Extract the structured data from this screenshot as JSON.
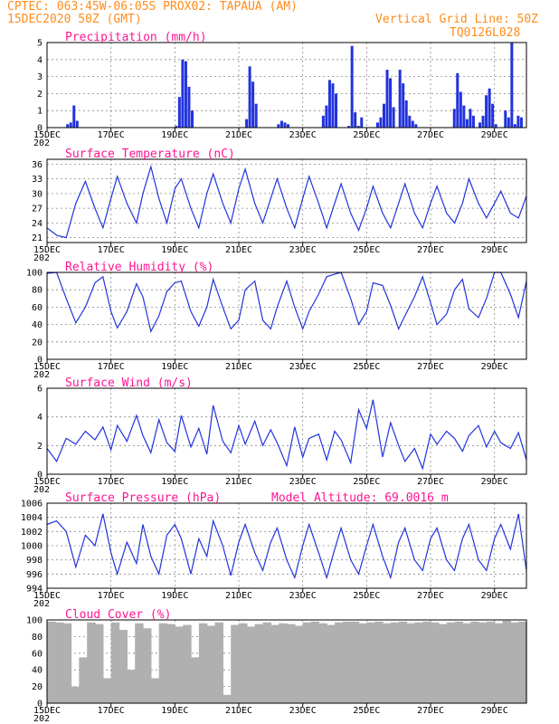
{
  "header": {
    "line1": "CPTEC:  063:45W-06:05S  PROX02: TAPAUA (AM)",
    "line2": "15DEC2020 50Z (GMT)",
    "vgrid": "Vertical Grid Line: 50Z",
    "code": "TQ0126L028"
  },
  "colors": {
    "header": "#ff8c1a",
    "title": "#ff1493",
    "line": "#2233dd",
    "cloud": "#b0b0b0",
    "grid": "#888888"
  },
  "x_labels": [
    "15DEC",
    "17DEC",
    "19DEC",
    "21DEC",
    "23DEC",
    "25DEC",
    "27DEC",
    "29DEC"
  ],
  "x_label_prefix": "202",
  "chart_data": [
    {
      "type": "bar",
      "title": "Precipitation (mm/h)",
      "ylim": [
        0,
        5
      ],
      "yticks": [
        "0",
        "1",
        "2",
        "3",
        "4",
        "5"
      ],
      "x": [
        0.6,
        0.7,
        0.8,
        0.9,
        4.0,
        4.1,
        4.2,
        4.3,
        4.4,
        4.5,
        6.2,
        6.3,
        6.4,
        6.5,
        7.2,
        7.3,
        7.4,
        7.5,
        8.6,
        8.7,
        8.8,
        8.9,
        9.0,
        9.4,
        9.5,
        9.6,
        9.7,
        9.8,
        10.3,
        10.4,
        10.5,
        10.6,
        10.7,
        10.8,
        11.0,
        11.1,
        11.2,
        11.3,
        11.4,
        11.5,
        12.7,
        12.8,
        12.9,
        13.0,
        13.1,
        13.2,
        13.3,
        13.5,
        13.6,
        13.7,
        13.8,
        13.9,
        14.0,
        14.3,
        14.4,
        14.5,
        14.6,
        14.7,
        14.8
      ],
      "values": [
        0.2,
        0.3,
        1.3,
        0.4,
        0.1,
        1.8,
        4.0,
        3.9,
        2.4,
        1.0,
        0.5,
        3.6,
        2.7,
        1.4,
        0.2,
        0.4,
        0.3,
        0.2,
        0.7,
        1.3,
        2.8,
        2.6,
        2.0,
        0.1,
        4.8,
        0.9,
        0.1,
        0.6,
        0.3,
        0.6,
        1.4,
        3.4,
        2.9,
        1.2,
        3.4,
        2.6,
        1.6,
        0.7,
        0.4,
        0.2,
        1.1,
        3.2,
        2.1,
        1.3,
        0.5,
        1.1,
        0.7,
        0.3,
        0.7,
        1.9,
        2.3,
        1.4,
        0.2,
        1.0,
        0.6,
        5.0,
        0.2,
        0.7,
        0.6
      ]
    },
    {
      "type": "line",
      "title": "Surface Temperature (nC)",
      "ylim": [
        20,
        37
      ],
      "yticks": [
        "21",
        "24",
        "27",
        "30",
        "33",
        "36"
      ],
      "x": [
        0.0,
        0.3,
        0.6,
        0.9,
        1.2,
        1.5,
        1.75,
        2.0,
        2.2,
        2.5,
        2.8,
        3.0,
        3.25,
        3.5,
        3.75,
        4.0,
        4.2,
        4.5,
        4.75,
        5.0,
        5.2,
        5.5,
        5.75,
        6.0,
        6.2,
        6.5,
        6.75,
        7.0,
        7.2,
        7.5,
        7.75,
        8.0,
        8.2,
        8.5,
        8.75,
        9.0,
        9.2,
        9.5,
        9.75,
        10.0,
        10.2,
        10.5,
        10.75,
        11.0,
        11.2,
        11.5,
        11.75,
        12.0,
        12.2,
        12.5,
        12.75,
        13.0,
        13.2,
        13.5,
        13.75,
        14.0,
        14.2,
        14.5,
        14.75,
        15.0
      ],
      "values": [
        23,
        21.5,
        21,
        28,
        32.5,
        27,
        23,
        29,
        33.5,
        28,
        24,
        30,
        35.5,
        29,
        24,
        31,
        33,
        27,
        23,
        30,
        34,
        28,
        24,
        31,
        35,
        28,
        24,
        29,
        33,
        27,
        23,
        29,
        33.5,
        28,
        23,
        28,
        32,
        26,
        22.5,
        27,
        31.5,
        26,
        23,
        28,
        32,
        26,
        23,
        28,
        31.5,
        26,
        24,
        28,
        33,
        28,
        25,
        28,
        30.5,
        26,
        25,
        29.5
      ]
    },
    {
      "type": "line",
      "title": "Relative Humidity (%)",
      "ylim": [
        0,
        100
      ],
      "yticks": [
        "0",
        "20",
        "40",
        "60",
        "80",
        "100"
      ],
      "x": [
        0.0,
        0.3,
        0.6,
        0.9,
        1.2,
        1.5,
        1.75,
        2.0,
        2.2,
        2.5,
        2.8,
        3.0,
        3.25,
        3.5,
        3.75,
        4.0,
        4.2,
        4.5,
        4.75,
        5.0,
        5.2,
        5.5,
        5.75,
        6.0,
        6.2,
        6.5,
        6.75,
        7.0,
        7.2,
        7.5,
        7.75,
        8.0,
        8.2,
        8.5,
        8.75,
        9.0,
        9.2,
        9.5,
        9.75,
        10.0,
        10.2,
        10.5,
        10.75,
        11.0,
        11.2,
        11.5,
        11.75,
        12.0,
        12.2,
        12.5,
        12.75,
        13.0,
        13.2,
        13.5,
        13.75,
        14.0,
        14.2,
        14.5,
        14.75,
        15.0
      ],
      "values": [
        99,
        100,
        70,
        42,
        60,
        88,
        95,
        55,
        36,
        55,
        87,
        72,
        32,
        50,
        78,
        88,
        90,
        55,
        38,
        60,
        92,
        60,
        35,
        45,
        80,
        90,
        45,
        35,
        60,
        90,
        60,
        35,
        55,
        75,
        95,
        98,
        100,
        70,
        40,
        55,
        88,
        85,
        62,
        35,
        50,
        72,
        95,
        65,
        40,
        52,
        80,
        92,
        58,
        48,
        70,
        100,
        100,
        75,
        48,
        90
      ]
    },
    {
      "type": "line",
      "title": "Surface Wind (m/s)",
      "ylim": [
        0,
        6
      ],
      "yticks": [
        "0",
        "2",
        "4",
        "6"
      ],
      "x": [
        0.0,
        0.3,
        0.6,
        0.9,
        1.2,
        1.5,
        1.75,
        2.0,
        2.2,
        2.5,
        2.8,
        3.0,
        3.25,
        3.5,
        3.75,
        4.0,
        4.2,
        4.5,
        4.75,
        5.0,
        5.2,
        5.5,
        5.75,
        6.0,
        6.2,
        6.5,
        6.75,
        7.0,
        7.2,
        7.5,
        7.75,
        8.0,
        8.2,
        8.5,
        8.75,
        9.0,
        9.2,
        9.5,
        9.75,
        10.0,
        10.2,
        10.5,
        10.75,
        11.0,
        11.2,
        11.5,
        11.75,
        12.0,
        12.2,
        12.5,
        12.75,
        13.0,
        13.2,
        13.5,
        13.75,
        14.0,
        14.2,
        14.5,
        14.75,
        15.0
      ],
      "values": [
        1.8,
        0.9,
        2.5,
        2.1,
        3.0,
        2.4,
        3.3,
        1.7,
        3.4,
        2.3,
        4.1,
        2.7,
        1.5,
        3.8,
        2.2,
        1.6,
        4.1,
        1.9,
        3.2,
        1.4,
        4.8,
        2.3,
        1.5,
        3.4,
        2.1,
        3.7,
        2.0,
        3.1,
        2.2,
        0.6,
        3.3,
        1.2,
        2.5,
        2.8,
        1.0,
        3.0,
        2.4,
        0.8,
        4.5,
        3.2,
        5.2,
        1.2,
        3.6,
        2.0,
        0.9,
        1.8,
        0.4,
        2.8,
        2.1,
        3.0,
        2.5,
        1.6,
        2.7,
        3.4,
        1.9,
        3.0,
        2.2,
        1.8,
        2.9,
        1.0
      ]
    },
    {
      "type": "line",
      "title": "Surface Pressure (hPa)",
      "annotation": "Model Altitude: 69.0016 m",
      "ylim": [
        994,
        1006
      ],
      "yticks": [
        "994",
        "996",
        "998",
        "1000",
        "1002",
        "1004",
        "1006"
      ],
      "x": [
        0.0,
        0.3,
        0.6,
        0.9,
        1.2,
        1.5,
        1.75,
        2.0,
        2.2,
        2.5,
        2.8,
        3.0,
        3.25,
        3.5,
        3.75,
        4.0,
        4.2,
        4.5,
        4.75,
        5.0,
        5.2,
        5.5,
        5.75,
        6.0,
        6.2,
        6.5,
        6.75,
        7.0,
        7.2,
        7.5,
        7.75,
        8.0,
        8.2,
        8.5,
        8.75,
        9.0,
        9.2,
        9.5,
        9.75,
        10.0,
        10.2,
        10.5,
        10.75,
        11.0,
        11.2,
        11.5,
        11.75,
        12.0,
        12.2,
        12.5,
        12.75,
        13.0,
        13.2,
        13.5,
        13.75,
        14.0,
        14.2,
        14.5,
        14.75,
        15.0
      ],
      "values": [
        1003,
        1003.5,
        1002,
        997,
        1001.5,
        1000,
        1004.5,
        999,
        996,
        1000.5,
        997.5,
        1003,
        998.5,
        996,
        1001.5,
        1003,
        1001,
        996,
        1001,
        998.5,
        1003.5,
        1000,
        995.8,
        1000.5,
        1003,
        999,
        996.5,
        1000.5,
        1002.5,
        998,
        995.5,
        1000,
        1003,
        999,
        995.5,
        999.5,
        1002.5,
        998,
        996,
        1000,
        1003,
        998.5,
        995.5,
        1000.5,
        1002.5,
        998,
        996.5,
        1001,
        1002.5,
        998,
        996.5,
        1001,
        1003,
        998,
        996.5,
        1001,
        1003,
        999.5,
        1004.5,
        996.5
      ]
    },
    {
      "type": "bar",
      "title": "Cloud Cover (%)",
      "ylim": [
        0,
        100
      ],
      "yticks": [
        "0",
        "20",
        "40",
        "60",
        "80",
        "100"
      ],
      "x": [
        0.0,
        0.25,
        0.5,
        0.75,
        1.0,
        1.25,
        1.5,
        1.75,
        2.0,
        2.25,
        2.5,
        2.75,
        3.0,
        3.25,
        3.5,
        3.75,
        4.0,
        4.25,
        4.5,
        4.75,
        5.0,
        5.25,
        5.5,
        5.75,
        6.0,
        6.25,
        6.5,
        6.75,
        7.0,
        7.25,
        7.5,
        7.75,
        8.0,
        8.25,
        8.5,
        8.75,
        9.0,
        9.25,
        9.5,
        9.75,
        10.0,
        10.25,
        10.5,
        10.75,
        11.0,
        11.25,
        11.5,
        11.75,
        12.0,
        12.25,
        12.5,
        12.75,
        13.0,
        13.25,
        13.5,
        13.75,
        14.0,
        14.25,
        14.5,
        14.75
      ],
      "values": [
        98,
        97,
        96,
        20,
        55,
        97,
        95,
        30,
        97,
        88,
        40,
        96,
        90,
        30,
        96,
        95,
        92,
        94,
        55,
        96,
        93,
        97,
        10,
        94,
        96,
        92,
        95,
        97,
        94,
        96,
        95,
        93,
        97,
        98,
        96,
        94,
        97,
        98,
        98,
        96,
        97,
        98,
        96,
        97,
        98,
        96,
        97,
        98,
        97,
        95,
        97,
        98,
        96,
        98,
        97,
        98,
        96,
        99,
        97,
        98
      ]
    }
  ]
}
